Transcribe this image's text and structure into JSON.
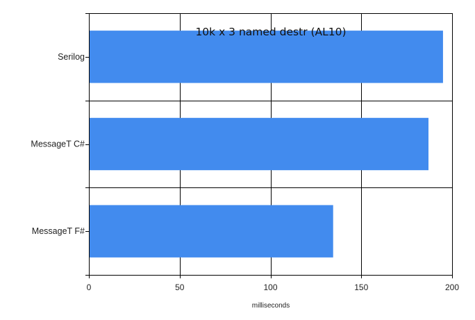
{
  "chart_data": {
    "type": "bar",
    "orientation": "horizontal",
    "title": "10k x 3 named destr (AL10)",
    "xlabel": "milliseconds",
    "ylabel": "",
    "categories": [
      "Serilog",
      "MessageT C#",
      "MessageT F#"
    ],
    "values": [
      195,
      187,
      134.5
    ],
    "xlim": [
      0,
      200
    ],
    "xticks": [
      0,
      50,
      100,
      150,
      200
    ],
    "grid": true,
    "bar_color": "#428BEE",
    "legend": "none"
  }
}
